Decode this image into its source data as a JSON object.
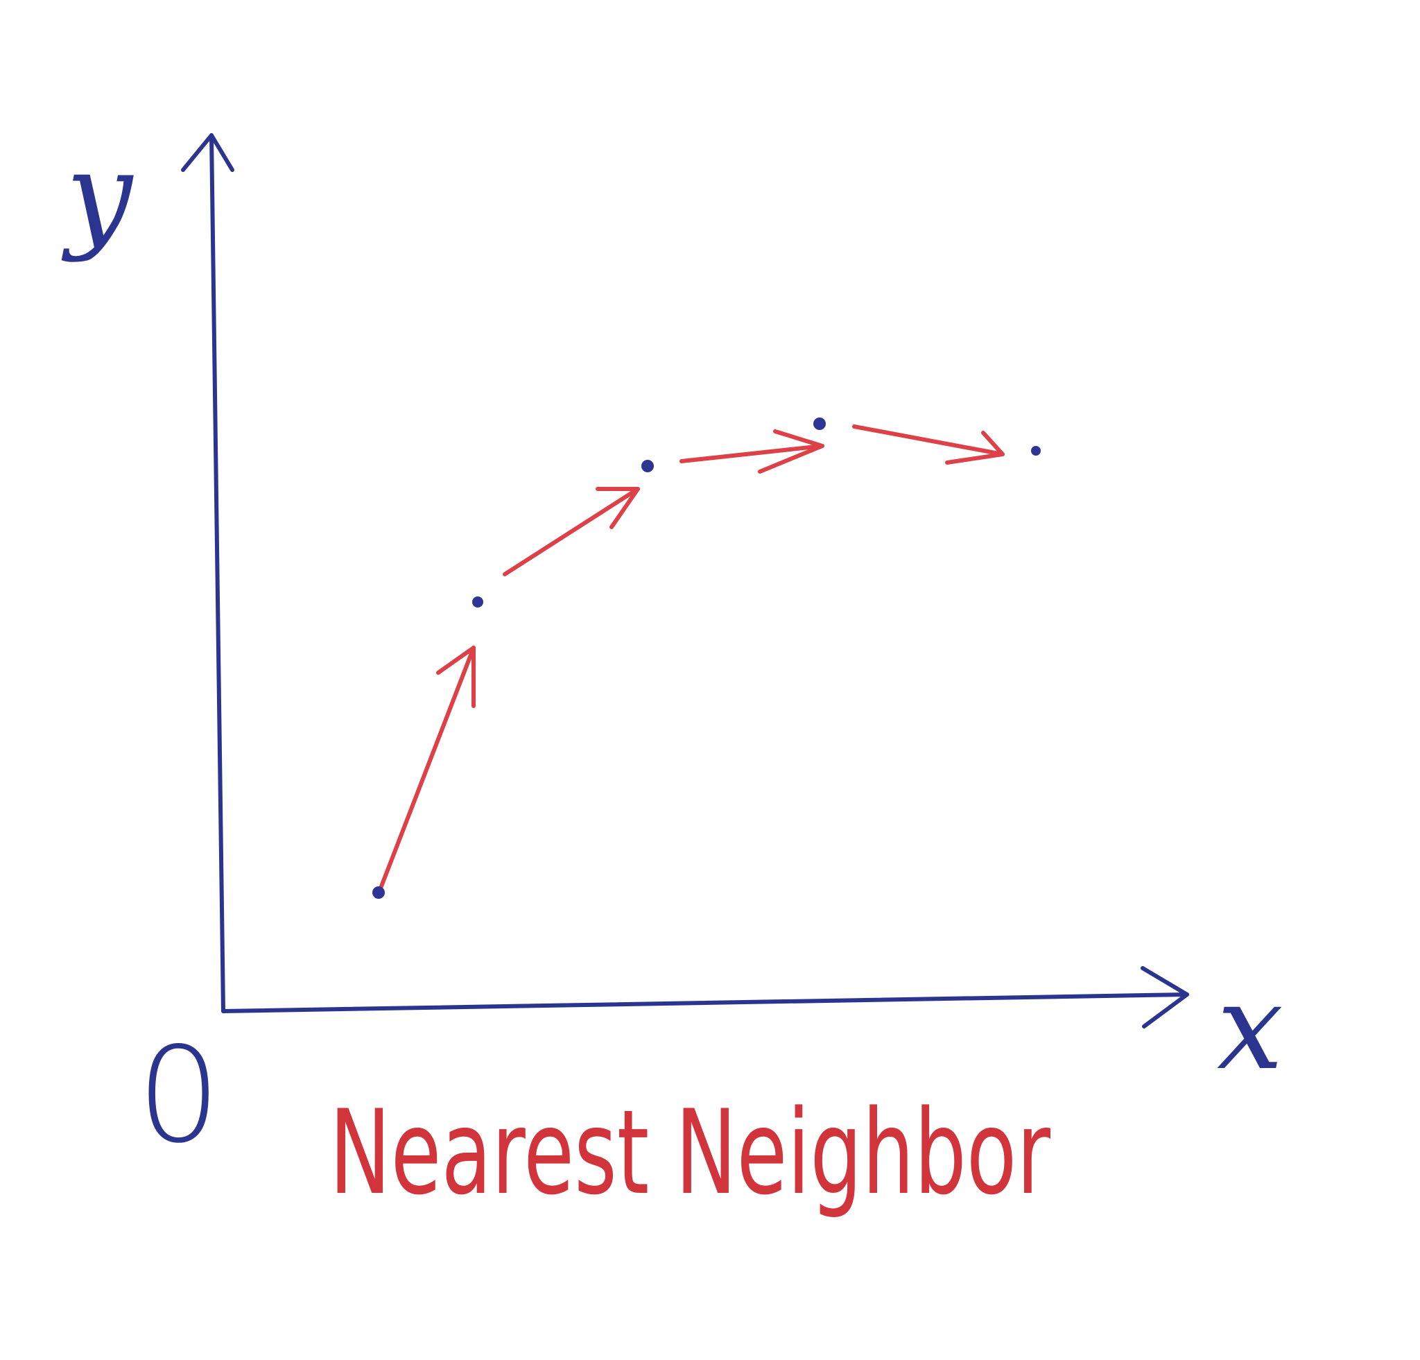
{
  "diagram": {
    "title": "Nearest Neighbor",
    "axes": {
      "x_label": "x",
      "y_label": "y",
      "origin_label": "0"
    },
    "colors": {
      "axis": "#2b3590",
      "points": "#2e3595",
      "arrows": "#dd4046",
      "title": "#d1343a"
    },
    "points": [
      {
        "id": "p1"
      },
      {
        "id": "p2"
      },
      {
        "id": "p3"
      },
      {
        "id": "p4"
      },
      {
        "id": "p5"
      }
    ],
    "connections": [
      {
        "from": "p1",
        "to": "p2"
      },
      {
        "from": "p2",
        "to": "p3"
      },
      {
        "from": "p3",
        "to": "p4"
      },
      {
        "from": "p4",
        "to": "p5"
      }
    ]
  }
}
